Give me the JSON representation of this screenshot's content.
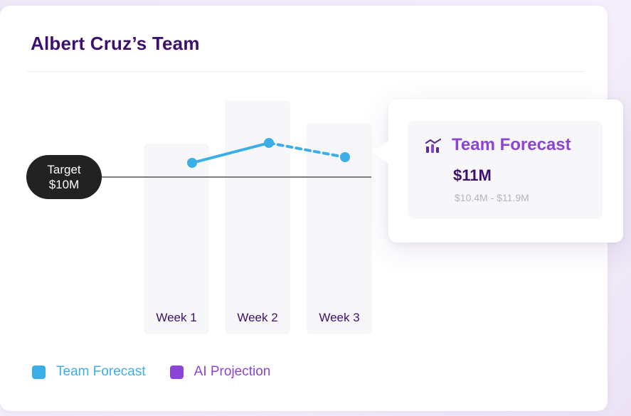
{
  "card": {
    "title": "Albert Cruz’s Team"
  },
  "target": {
    "label_line1": "Target",
    "label_line2": "$10M"
  },
  "chart_data": {
    "type": "line",
    "categories": [
      "Week 1",
      "Week 2",
      "Week 3"
    ],
    "target_value": 10,
    "ylim": [
      8,
      13
    ],
    "series": [
      {
        "name": "Team Forecast",
        "values": [
          10.5,
          11.2,
          10.7
        ],
        "color": "#3baee8",
        "dashed_from_index": 1
      }
    ],
    "title": "",
    "xlabel": "",
    "ylabel": "",
    "grid": false
  },
  "legend": [
    {
      "label": "Team Forecast",
      "color": "#3baee8"
    },
    {
      "label": "AI Projection",
      "color": "#8a45d6"
    }
  ],
  "tooltip": {
    "icon": "chart-bar-icon",
    "title": "Team Forecast",
    "value": "$11M",
    "range": "$10.4M - $11.9M"
  },
  "colors": {
    "brand_purple": "#3d1070",
    "accent_purple": "#8a45d6",
    "forecast_blue": "#3baee8"
  }
}
